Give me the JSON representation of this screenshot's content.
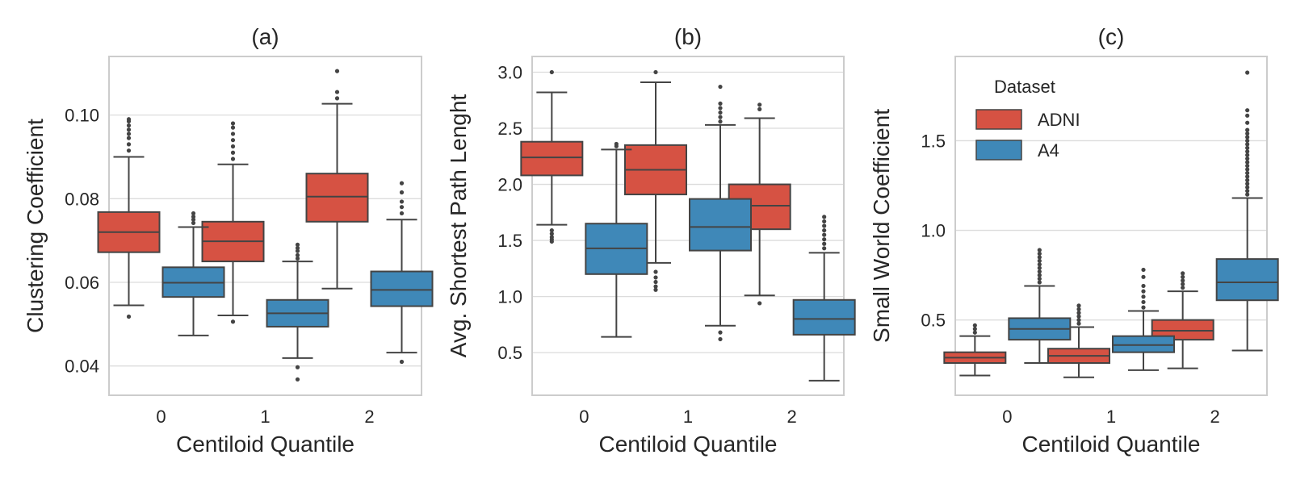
{
  "colors": {
    "ADNI": "#d65243",
    "A4": "#3f88b8",
    "line": "#444444",
    "grid": "#dcdcdc",
    "frame": "#cccccc"
  },
  "legend": {
    "title": "Dataset",
    "entries": [
      "ADNI",
      "A4"
    ]
  },
  "chart_data": [
    {
      "type": "box",
      "title": "(a)",
      "xlabel": "Centiloid Quantile",
      "ylabel": "Clustering Coefficient",
      "categories": [
        "0",
        "1",
        "2"
      ],
      "yticks": [
        0.04,
        0.06,
        0.08,
        0.1
      ],
      "ytick_labels": [
        "0.04",
        "0.06",
        "0.08",
        "0.10"
      ],
      "ylim": [
        0.033,
        0.114
      ],
      "series": [
        {
          "name": "ADNI",
          "boxes": [
            {
              "whislo": 0.0545,
              "q1": 0.0672,
              "med": 0.072,
              "q3": 0.0768,
              "whishi": 0.09,
              "fliers": [
                0.0518,
                0.0915,
                0.093,
                0.0945,
                0.0955,
                0.0965,
                0.0975,
                0.0985,
                0.099
              ]
            },
            {
              "whislo": 0.0521,
              "q1": 0.065,
              "med": 0.0698,
              "q3": 0.0745,
              "whishi": 0.0882,
              "fliers": [
                0.0506,
                0.0895,
                0.091,
                0.0925,
                0.094,
                0.0955,
                0.097,
                0.098
              ]
            },
            {
              "whislo": 0.0585,
              "q1": 0.0745,
              "med": 0.0805,
              "q3": 0.086,
              "whishi": 0.1027,
              "fliers": [
                0.104,
                0.1055,
                0.1105
              ]
            }
          ]
        },
        {
          "name": "A4",
          "boxes": [
            {
              "whislo": 0.0473,
              "q1": 0.0565,
              "med": 0.0599,
              "q3": 0.0636,
              "whishi": 0.0732,
              "fliers": [
                0.0742,
                0.075,
                0.0757,
                0.0765
              ]
            },
            {
              "whislo": 0.0419,
              "q1": 0.0494,
              "med": 0.0526,
              "q3": 0.0558,
              "whishi": 0.065,
              "fliers": [
                0.0657,
                0.0665,
                0.0675,
                0.0682,
                0.069,
                0.0397,
                0.0368
              ]
            },
            {
              "whislo": 0.0432,
              "q1": 0.0543,
              "med": 0.0582,
              "q3": 0.0626,
              "whishi": 0.075,
              "fliers": [
                0.0765,
                0.078,
                0.0793,
                0.0815,
                0.0837,
                0.041
              ]
            }
          ]
        }
      ]
    },
    {
      "type": "box",
      "title": "(b)",
      "xlabel": "Centiloid Quantile",
      "ylabel": "Avg. Shortest Path Lenght",
      "categories": [
        "0",
        "1",
        "2"
      ],
      "yticks": [
        0.5,
        1.0,
        1.5,
        2.0,
        2.5,
        3.0
      ],
      "ytick_labels": [
        "0.5",
        "1.0",
        "1.5",
        "2.0",
        "2.5",
        "3.0"
      ],
      "ylim": [
        0.12,
        3.14
      ],
      "series": [
        {
          "name": "ADNI",
          "boxes": [
            {
              "whislo": 1.64,
              "q1": 2.08,
              "med": 2.24,
              "q3": 2.38,
              "whishi": 2.82,
              "fliers": [
                1.49,
                1.51,
                1.53,
                1.56,
                1.59,
                3.0
              ]
            },
            {
              "whislo": 1.3,
              "q1": 1.91,
              "med": 2.13,
              "q3": 2.35,
              "whishi": 2.91,
              "fliers": [
                1.06,
                1.09,
                1.13,
                1.17,
                1.22,
                3.0
              ]
            },
            {
              "whislo": 1.01,
              "q1": 1.6,
              "med": 1.81,
              "q3": 2.0,
              "whishi": 2.59,
              "fliers": [
                0.94,
                2.67,
                2.71
              ]
            }
          ]
        },
        {
          "name": "A4",
          "boxes": [
            {
              "whislo": 0.64,
              "q1": 1.2,
              "med": 1.43,
              "q3": 1.65,
              "whishi": 2.31,
              "fliers": [
                2.34,
                2.36
              ]
            },
            {
              "whislo": 0.74,
              "q1": 1.41,
              "med": 1.62,
              "q3": 1.87,
              "whishi": 2.53,
              "fliers": [
                0.62,
                0.68,
                2.56,
                2.6,
                2.64,
                2.68,
                2.72,
                2.87
              ]
            },
            {
              "whislo": 0.25,
              "q1": 0.66,
              "med": 0.8,
              "q3": 0.97,
              "whishi": 1.39,
              "fliers": [
                1.43,
                1.47,
                1.51,
                1.55,
                1.59,
                1.63,
                1.67,
                1.71
              ]
            }
          ]
        }
      ]
    },
    {
      "type": "box",
      "title": "(c)",
      "xlabel": "Centiloid Quantile",
      "ylabel": "Small World Coefficient",
      "categories": [
        "0",
        "1",
        "2"
      ],
      "yticks": [
        0.5,
        1.0,
        1.5
      ],
      "ytick_labels": [
        "0.5",
        "1.0",
        "1.5"
      ],
      "ylim": [
        0.08,
        1.97
      ],
      "legend": "top-left",
      "series": [
        {
          "name": "ADNI",
          "boxes": [
            {
              "whislo": 0.19,
              "q1": 0.26,
              "med": 0.29,
              "q3": 0.32,
              "whishi": 0.41,
              "fliers": [
                0.43,
                0.45,
                0.47
              ]
            },
            {
              "whislo": 0.18,
              "q1": 0.26,
              "med": 0.3,
              "q3": 0.34,
              "whishi": 0.46,
              "fliers": [
                0.48,
                0.5,
                0.52,
                0.54,
                0.56,
                0.58
              ]
            },
            {
              "whislo": 0.23,
              "q1": 0.39,
              "med": 0.44,
              "q3": 0.5,
              "whishi": 0.66,
              "fliers": [
                0.68,
                0.7,
                0.72,
                0.74,
                0.76
              ]
            }
          ]
        },
        {
          "name": "A4",
          "boxes": [
            {
              "whislo": 0.26,
              "q1": 0.39,
              "med": 0.45,
              "q3": 0.51,
              "whishi": 0.69,
              "fliers": [
                0.71,
                0.73,
                0.75,
                0.77,
                0.79,
                0.81,
                0.83,
                0.85,
                0.87,
                0.89
              ]
            },
            {
              "whislo": 0.22,
              "q1": 0.32,
              "med": 0.36,
              "q3": 0.41,
              "whishi": 0.55,
              "fliers": [
                0.57,
                0.6,
                0.63,
                0.66,
                0.69,
                0.74,
                0.78
              ]
            },
            {
              "whislo": 0.33,
              "q1": 0.61,
              "med": 0.71,
              "q3": 0.84,
              "whishi": 1.18,
              "fliers": [
                1.2,
                1.22,
                1.24,
                1.26,
                1.28,
                1.3,
                1.32,
                1.34,
                1.36,
                1.38,
                1.4,
                1.42,
                1.44,
                1.46,
                1.48,
                1.5,
                1.52,
                1.54,
                1.56,
                1.6,
                1.64,
                1.67,
                1.88
              ]
            }
          ]
        }
      ]
    }
  ]
}
